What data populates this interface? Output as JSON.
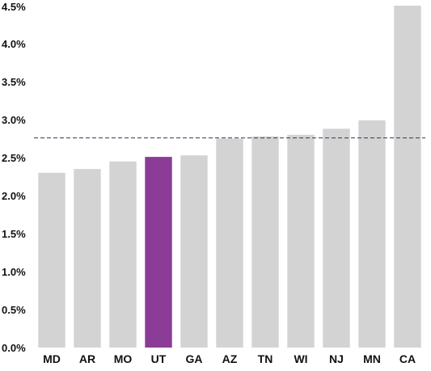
{
  "chart_data": {
    "type": "bar",
    "categories": [
      "MD",
      "AR",
      "MO",
      "UT",
      "GA",
      "AZ",
      "TN",
      "WI",
      "NJ",
      "MN",
      "CA"
    ],
    "values": [
      2.3,
      2.35,
      2.45,
      2.51,
      2.53,
      2.75,
      2.78,
      2.8,
      2.88,
      2.99,
      4.5
    ],
    "highlight": "UT",
    "reference_line": 2.76,
    "ylim": [
      0,
      4.5
    ],
    "yticks": [
      "0.0%",
      "0.5%",
      "1.0%",
      "1.5%",
      "2.0%",
      "2.5%",
      "3.0%",
      "3.5%",
      "4.0%",
      "4.5%"
    ],
    "ytick_values": [
      0,
      0.5,
      1.0,
      1.5,
      2.0,
      2.5,
      3.0,
      3.5,
      4.0,
      4.5
    ],
    "title": "",
    "xlabel": "",
    "ylabel": "",
    "grid": false,
    "colors": {
      "bar": "#d3d3d4",
      "highlight": "#8b3c96",
      "reference_line": "#2e3a5c",
      "text": "#111111"
    }
  }
}
